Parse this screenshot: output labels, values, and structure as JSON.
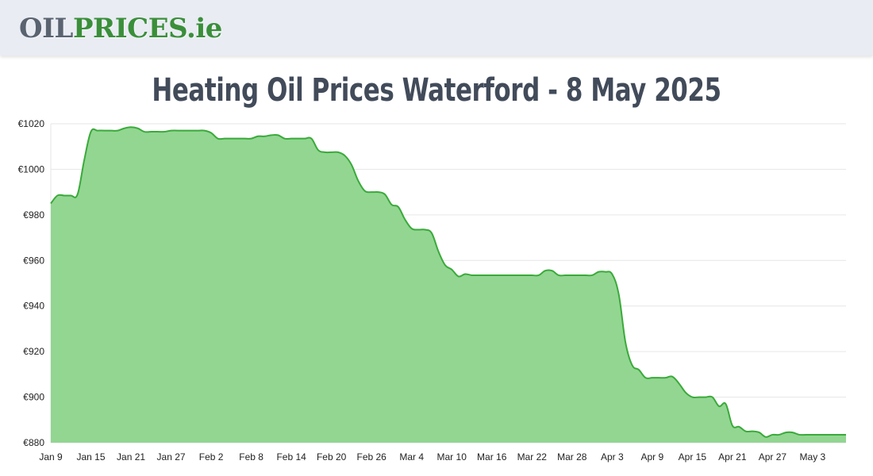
{
  "header": {
    "logo_oil": "OIL",
    "logo_prices": "PRICES",
    "logo_tld": ".ie"
  },
  "page": {
    "title": "Heating Oil Prices Waterford - 8 May 2025"
  },
  "colors": {
    "line": "#3aaa3a",
    "fill": "#92d692",
    "grid": "#e6e6e6"
  },
  "chart_data": {
    "type": "area",
    "title": "Heating Oil Prices Waterford - 8 May 2025",
    "xlabel": "",
    "ylabel": "",
    "ylim": [
      880,
      1020
    ],
    "xlim": [
      0,
      119
    ],
    "grid": true,
    "y_ticks": [
      {
        "value": 1020,
        "label": "€1020"
      },
      {
        "value": 1000,
        "label": "€1000"
      },
      {
        "value": 980,
        "label": "€980"
      },
      {
        "value": 960,
        "label": "€960"
      },
      {
        "value": 940,
        "label": "€940"
      },
      {
        "value": 920,
        "label": "€920"
      },
      {
        "value": 900,
        "label": "€900"
      },
      {
        "value": 880,
        "label": "€880"
      }
    ],
    "x_ticks": [
      {
        "day": 0,
        "label": "Jan 9"
      },
      {
        "day": 6,
        "label": "Jan 15"
      },
      {
        "day": 12,
        "label": "Jan 21"
      },
      {
        "day": 18,
        "label": "Jan 27"
      },
      {
        "day": 24,
        "label": "Feb 2"
      },
      {
        "day": 30,
        "label": "Feb 8"
      },
      {
        "day": 36,
        "label": "Feb 14"
      },
      {
        "day": 42,
        "label": "Feb 20"
      },
      {
        "day": 48,
        "label": "Feb 26"
      },
      {
        "day": 54,
        "label": "Mar 4"
      },
      {
        "day": 60,
        "label": "Mar 10"
      },
      {
        "day": 66,
        "label": "Mar 16"
      },
      {
        "day": 72,
        "label": "Mar 22"
      },
      {
        "day": 78,
        "label": "Mar 28"
      },
      {
        "day": 84,
        "label": "Apr 3"
      },
      {
        "day": 90,
        "label": "Apr 9"
      },
      {
        "day": 96,
        "label": "Apr 15"
      },
      {
        "day": 102,
        "label": "Apr 21"
      },
      {
        "day": 108,
        "label": "Apr 27"
      },
      {
        "day": 114,
        "label": "May 3"
      }
    ],
    "series": [
      {
        "points": [
          [
            0,
            985
          ],
          [
            1,
            988.5
          ],
          [
            2,
            988.5
          ],
          [
            3,
            988.5
          ],
          [
            4,
            989
          ],
          [
            5,
            1004
          ],
          [
            6,
            1016.5
          ],
          [
            7,
            1017
          ],
          [
            8,
            1017
          ],
          [
            9,
            1017
          ],
          [
            10,
            1017
          ],
          [
            11,
            1018
          ],
          [
            12,
            1018.5
          ],
          [
            13,
            1018
          ],
          [
            14,
            1016.5
          ],
          [
            15,
            1016.5
          ],
          [
            16,
            1016.5
          ],
          [
            17,
            1016.5
          ],
          [
            18,
            1017
          ],
          [
            19,
            1017
          ],
          [
            20,
            1017
          ],
          [
            21,
            1017
          ],
          [
            22,
            1017
          ],
          [
            23,
            1017
          ],
          [
            24,
            1016
          ],
          [
            25,
            1013.5
          ],
          [
            26,
            1013.5
          ],
          [
            27,
            1013.5
          ],
          [
            28,
            1013.5
          ],
          [
            29,
            1013.5
          ],
          [
            30,
            1013.5
          ],
          [
            31,
            1014.5
          ],
          [
            32,
            1014.5
          ],
          [
            33,
            1015
          ],
          [
            34,
            1015
          ],
          [
            35,
            1013.5
          ],
          [
            36,
            1013.5
          ],
          [
            37,
            1013.5
          ],
          [
            38,
            1013.5
          ],
          [
            39,
            1013.5
          ],
          [
            40,
            1008.5
          ],
          [
            41,
            1007.5
          ],
          [
            42,
            1007.5
          ],
          [
            43,
            1007.5
          ],
          [
            44,
            1006
          ],
          [
            45,
            1002
          ],
          [
            46,
            995
          ],
          [
            47,
            990.5
          ],
          [
            48,
            990
          ],
          [
            49,
            990
          ],
          [
            50,
            989
          ],
          [
            51,
            984.5
          ],
          [
            52,
            983.5
          ],
          [
            53,
            978
          ],
          [
            54,
            974
          ],
          [
            55,
            973.5
          ],
          [
            56,
            973.5
          ],
          [
            57,
            972
          ],
          [
            58,
            964
          ],
          [
            59,
            958
          ],
          [
            60,
            956
          ],
          [
            61,
            953
          ],
          [
            62,
            954
          ],
          [
            63,
            953.5
          ],
          [
            64,
            953.5
          ],
          [
            65,
            953.5
          ],
          [
            66,
            953.5
          ],
          [
            67,
            953.5
          ],
          [
            68,
            953.5
          ],
          [
            69,
            953.5
          ],
          [
            70,
            953.5
          ],
          [
            71,
            953.5
          ],
          [
            72,
            953.5
          ],
          [
            73,
            953.5
          ],
          [
            74,
            955.5
          ],
          [
            75,
            955.5
          ],
          [
            76,
            953.5
          ],
          [
            77,
            953.5
          ],
          [
            78,
            953.5
          ],
          [
            79,
            953.5
          ],
          [
            80,
            953.5
          ],
          [
            81,
            953.5
          ],
          [
            82,
            955
          ],
          [
            83,
            955
          ],
          [
            84,
            954
          ],
          [
            85,
            945
          ],
          [
            86,
            924
          ],
          [
            87,
            914
          ],
          [
            88,
            912
          ],
          [
            89,
            908.5
          ],
          [
            90,
            908.5
          ],
          [
            91,
            908.5
          ],
          [
            92,
            908.5
          ],
          [
            93,
            909
          ],
          [
            94,
            906
          ],
          [
            95,
            902
          ],
          [
            96,
            900
          ],
          [
            97,
            900
          ],
          [
            98,
            900
          ],
          [
            99,
            900
          ],
          [
            100,
            896
          ],
          [
            101,
            897
          ],
          [
            102,
            887.5
          ],
          [
            103,
            887
          ],
          [
            104,
            885
          ],
          [
            105,
            885
          ],
          [
            106,
            884.5
          ],
          [
            107,
            882.5
          ],
          [
            108,
            883.5
          ],
          [
            109,
            883.5
          ],
          [
            110,
            884.5
          ],
          [
            111,
            884.5
          ],
          [
            112,
            883.5
          ],
          [
            113,
            883.5
          ],
          [
            114,
            883.5
          ],
          [
            115,
            883.5
          ],
          [
            116,
            883.5
          ],
          [
            117,
            883.5
          ],
          [
            118,
            883.5
          ],
          [
            119,
            883.5
          ]
        ]
      }
    ]
  }
}
